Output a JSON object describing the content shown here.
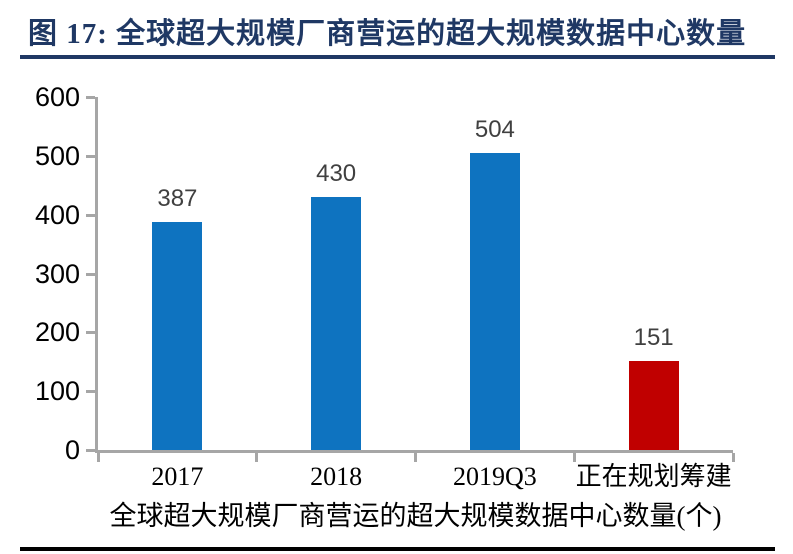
{
  "figure": {
    "title": "图 17: 全球超大规模厂商营运的超大规模数据中心数量",
    "title_color": "#1f3864",
    "top_rule_color": "#1f3864",
    "bottom_rule_color": "#000000"
  },
  "chart_data": {
    "type": "bar",
    "title": "",
    "categories": [
      "2017",
      "2018",
      "2019Q3",
      "正在规划筹建"
    ],
    "values": [
      387,
      430,
      504,
      151
    ],
    "bar_colors": [
      "#0e73c0",
      "#0e73c0",
      "#0e73c0",
      "#c00000"
    ],
    "data_labels": [
      387,
      430,
      504,
      151
    ],
    "xlabel": "全球超大规模厂商营运的超大规模数据中心数量(个)",
    "ylabel": "",
    "ylim": [
      0,
      600
    ],
    "yticks": [
      0,
      100,
      200,
      300,
      400,
      500,
      600
    ],
    "grid": false,
    "legend_position": "none",
    "axis_color": "#a6a6a6",
    "ytick_label_color": "#000000",
    "xtick_label_color": "#000000",
    "data_label_color": "#404040"
  }
}
